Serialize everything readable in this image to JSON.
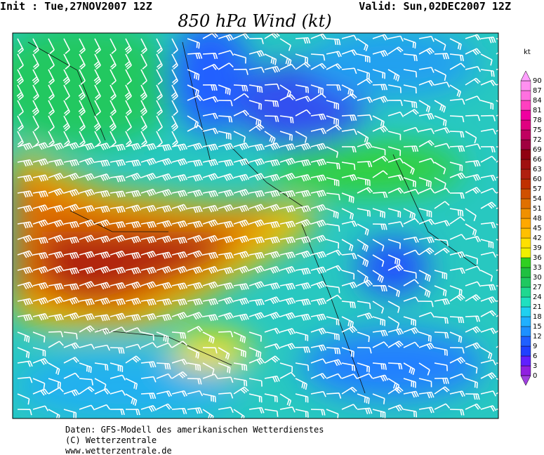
{
  "header": {
    "init": "Init : Tue,27NOV2007 12Z",
    "valid": "Valid: Sun,02DEC2007 12Z",
    "title": "850 hPa Wind (kt)"
  },
  "legend": {
    "unit": "kt",
    "levels": [
      0,
      3,
      6,
      9,
      12,
      15,
      18,
      21,
      24,
      27,
      30,
      33,
      36,
      39,
      42,
      45,
      48,
      51,
      54,
      57,
      60,
      63,
      66,
      69,
      72,
      75,
      78,
      81,
      84,
      87,
      90
    ]
  },
  "footer": {
    "lines": [
      "Daten: GFS-Modell des amerikanischen Wetterdienstes",
      "(C) Wetterzentrale",
      "www.wetterzentrale.de"
    ]
  }
}
